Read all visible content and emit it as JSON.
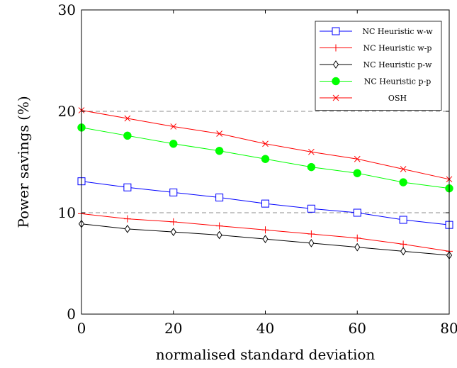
{
  "chart_data": {
    "type": "line",
    "xlabel": "normalised standard deviation",
    "ylabel": "Power savings (%)",
    "xlim": [
      0,
      80
    ],
    "ylim": [
      0,
      30
    ],
    "x_ticks": [
      0,
      20,
      40,
      60,
      80
    ],
    "y_ticks": [
      0,
      10,
      20,
      30
    ],
    "grid": "dashed horizontal lines at y = 10 and 20",
    "legend_position": "top-right",
    "x": [
      0,
      10,
      20,
      30,
      40,
      50,
      60,
      70,
      80
    ],
    "series": [
      {
        "name": "NC Heuristic w-w",
        "color": "#0000ff",
        "marker": "square-open",
        "values": [
          13.1,
          12.5,
          12.0,
          11.5,
          10.9,
          10.4,
          10.0,
          9.3,
          8.8
        ]
      },
      {
        "name": "NC Heuristic w-p",
        "color": "#ff0000",
        "marker": "plus",
        "values": [
          9.9,
          9.4,
          9.1,
          8.7,
          8.3,
          7.9,
          7.5,
          6.9,
          6.2
        ]
      },
      {
        "name": "NC Heuristic p-w",
        "color": "#000000",
        "marker": "diamond-open",
        "values": [
          8.9,
          8.4,
          8.1,
          7.8,
          7.4,
          7.0,
          6.6,
          6.2,
          5.8
        ]
      },
      {
        "name": "NC Heuristic p-p",
        "color": "#00ff00",
        "marker": "circle-filled",
        "values": [
          18.4,
          17.6,
          16.8,
          16.1,
          15.3,
          14.5,
          13.9,
          13.0,
          12.4
        ]
      },
      {
        "name": "OSH",
        "color": "#ff0000",
        "marker": "x",
        "values": [
          20.1,
          19.3,
          18.5,
          17.8,
          16.8,
          16.0,
          15.3,
          14.3,
          13.3
        ]
      }
    ]
  }
}
